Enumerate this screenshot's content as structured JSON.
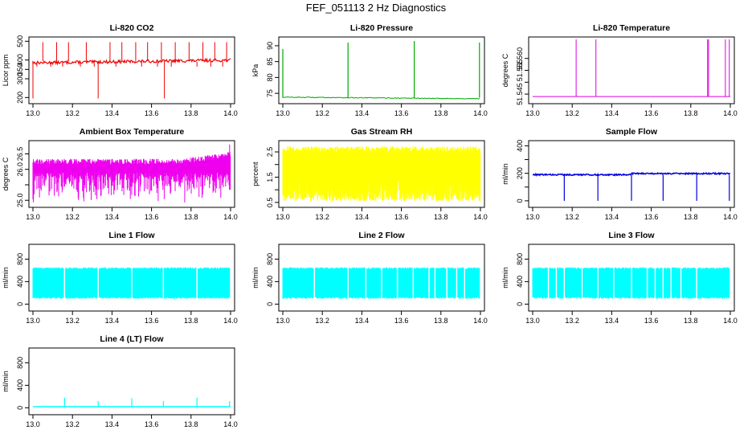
{
  "figure_title": "FEF_051113  2 Hz Diagnostics",
  "chart_data": [
    {
      "type": "line",
      "title": "Li-820 CO2",
      "ylabel": "Licor ppm",
      "color": "#ee0000",
      "xlim": [
        13.0,
        14.0
      ],
      "ylim": [
        180,
        510
      ],
      "xticks": [
        13.0,
        13.2,
        13.4,
        13.6,
        13.8,
        14.0
      ],
      "xtick_labels": [
        "13.0",
        "13.2",
        "13.4",
        "13.6",
        "13.8",
        "14.0"
      ],
      "yticks": [
        200,
        300,
        350,
        400,
        500
      ],
      "ytick_labels": [
        "200",
        "300",
        "350",
        "400",
        "500"
      ],
      "series": [
        {
          "name": "CO2",
          "style": "co2"
        }
      ]
    },
    {
      "type": "line",
      "title": "Li-820 Pressure",
      "ylabel": "kPa",
      "color": "#00aa00",
      "xlim": [
        13.0,
        14.0
      ],
      "ylim": [
        72.5,
        92
      ],
      "xticks": [
        13.0,
        13.2,
        13.4,
        13.6,
        13.8,
        14.0
      ],
      "xtick_labels": [
        "13.0",
        "13.2",
        "13.4",
        "13.6",
        "13.8",
        "14.0"
      ],
      "yticks": [
        75,
        80,
        85,
        90
      ],
      "ytick_labels": [
        "75",
        "80",
        "85",
        "90"
      ],
      "series": [
        {
          "name": "Pressure",
          "style": "pressure"
        }
      ]
    },
    {
      "type": "line",
      "title": "Li-820 Temperature",
      "ylabel": "degrees C",
      "color": "#dd00dd",
      "xlim": [
        13.0,
        14.0
      ],
      "ylim": [
        51.542,
        51.568
      ],
      "xticks": [
        13.0,
        13.2,
        13.4,
        13.6,
        13.8,
        14.0
      ],
      "xtick_labels": [
        "13.0",
        "13.2",
        "13.4",
        "13.6",
        "13.8",
        "14.0"
      ],
      "yticks": [
        51.545,
        51.55,
        51.555,
        51.56
      ],
      "ytick_labels": [
        "51.545",
        "",
        "51.555",
        "51.560"
      ],
      "series": [
        {
          "name": "Temperature",
          "style": "licortemp"
        }
      ]
    },
    {
      "type": "line",
      "title": "Ambient Box Temperature",
      "ylabel": "degrees C",
      "color": "#ee00ee",
      "xlim": [
        13.0,
        14.0
      ],
      "ylim": [
        24.85,
        26.85
      ],
      "xticks": [
        13.0,
        13.2,
        13.4,
        13.6,
        13.8,
        14.0
      ],
      "xtick_labels": [
        "13.0",
        "13.2",
        "13.4",
        "13.6",
        "13.8",
        "14.0"
      ],
      "yticks": [
        25.0,
        25.5,
        26.0,
        26.5
      ],
      "ytick_labels": [
        "25.0",
        "",
        "26.0",
        "26.5"
      ],
      "series": [
        {
          "name": "Box Temperature",
          "style": "ambient"
        }
      ]
    },
    {
      "type": "line",
      "title": "Gas Stream RH",
      "ylabel": "percent",
      "color": "#ffff00",
      "xlim": [
        13.0,
        14.0
      ],
      "ylim": [
        0.4,
        2.85
      ],
      "xticks": [
        13.0,
        13.2,
        13.4,
        13.6,
        13.8,
        14.0
      ],
      "xtick_labels": [
        "13.0",
        "13.2",
        "13.4",
        "13.6",
        "13.8",
        "14.0"
      ],
      "yticks": [
        0.5,
        1.0,
        1.5,
        2.0,
        2.5
      ],
      "ytick_labels": [
        "0.5",
        "",
        "1.5",
        "",
        "2.5"
      ],
      "series": [
        {
          "name": "RH",
          "style": "rh"
        }
      ]
    },
    {
      "type": "line",
      "title": "Sample Flow",
      "ylabel": "ml/min",
      "color": "#0000dd",
      "xlim": [
        13.0,
        14.0
      ],
      "ylim": [
        -30,
        420
      ],
      "xticks": [
        13.0,
        13.2,
        13.4,
        13.6,
        13.8,
        14.0
      ],
      "xtick_labels": [
        "13.0",
        "13.2",
        "13.4",
        "13.6",
        "13.8",
        "14.0"
      ],
      "yticks": [
        0,
        100,
        200,
        300,
        400
      ],
      "ytick_labels": [
        "0",
        "",
        "200",
        "",
        "400"
      ],
      "series": [
        {
          "name": "Sample Flow",
          "style": "sample"
        }
      ]
    },
    {
      "type": "line",
      "title": "Line 1 Flow",
      "ylabel": "ml/min",
      "color": "#00ffff",
      "xlim": [
        13.0,
        14.0
      ],
      "ylim": [
        -80,
        1020
      ],
      "xticks": [
        13.0,
        13.2,
        13.4,
        13.6,
        13.8,
        14.0
      ],
      "xtick_labels": [
        "13.0",
        "13.2",
        "13.4",
        "13.6",
        "13.8",
        "14.0"
      ],
      "yticks": [
        0,
        400,
        800
      ],
      "ytick_labels": [
        "0",
        "400",
        "800"
      ],
      "series": [
        {
          "name": "Line 1",
          "style": "flow",
          "gaps": [
            13.16,
            13.33,
            13.5,
            13.66,
            13.83
          ]
        }
      ]
    },
    {
      "type": "line",
      "title": "Line 2 Flow",
      "ylabel": "ml/min",
      "color": "#00ffff",
      "xlim": [
        13.0,
        14.0
      ],
      "ylim": [
        -80,
        1020
      ],
      "xticks": [
        13.0,
        13.2,
        13.4,
        13.6,
        13.8,
        14.0
      ],
      "xtick_labels": [
        "13.0",
        "13.2",
        "13.4",
        "13.6",
        "13.8",
        "14.0"
      ],
      "yticks": [
        0,
        400,
        800
      ],
      "ytick_labels": [
        "0",
        "400",
        "800"
      ],
      "series": [
        {
          "name": "Line 2",
          "style": "flow",
          "gaps": [
            13.16,
            13.33,
            13.42,
            13.5,
            13.58,
            13.66,
            13.74,
            13.77,
            13.83,
            13.88,
            13.92
          ]
        }
      ]
    },
    {
      "type": "line",
      "title": "Line 3 Flow",
      "ylabel": "ml/min",
      "color": "#00ffff",
      "xlim": [
        13.0,
        14.0
      ],
      "ylim": [
        -80,
        1020
      ],
      "xticks": [
        13.0,
        13.2,
        13.4,
        13.6,
        13.8,
        14.0
      ],
      "xtick_labels": [
        "13.0",
        "13.2",
        "13.4",
        "13.6",
        "13.8",
        "14.0"
      ],
      "yticks": [
        0,
        400,
        800
      ],
      "ytick_labels": [
        "0",
        "400",
        "800"
      ],
      "series": [
        {
          "name": "Line 3",
          "style": "flow",
          "gaps": [
            13.08,
            13.12,
            13.16,
            13.25,
            13.33,
            13.41,
            13.5,
            13.58,
            13.62,
            13.66,
            13.7,
            13.75,
            13.83
          ]
        }
      ]
    },
    {
      "type": "line",
      "title": "Line 4 (LT) Flow",
      "ylabel": "ml/min",
      "color": "#00ffff",
      "xlim": [
        13.0,
        14.0
      ],
      "ylim": [
        -80,
        1020
      ],
      "xticks": [
        13.0,
        13.2,
        13.4,
        13.6,
        13.8,
        14.0
      ],
      "xtick_labels": [
        "13.0",
        "13.2",
        "13.4",
        "13.6",
        "13.8",
        "14.0"
      ],
      "yticks": [
        0,
        400,
        800
      ],
      "ytick_labels": [
        "0",
        "400",
        "800"
      ],
      "series": [
        {
          "name": "Line 4",
          "style": "flat",
          "spikes": [
            [
              13.16,
              180
            ],
            [
              13.33,
              120
            ],
            [
              13.5,
              170
            ],
            [
              13.66,
              120
            ],
            [
              13.83,
              180
            ],
            [
              13.995,
              120
            ]
          ]
        }
      ]
    }
  ]
}
